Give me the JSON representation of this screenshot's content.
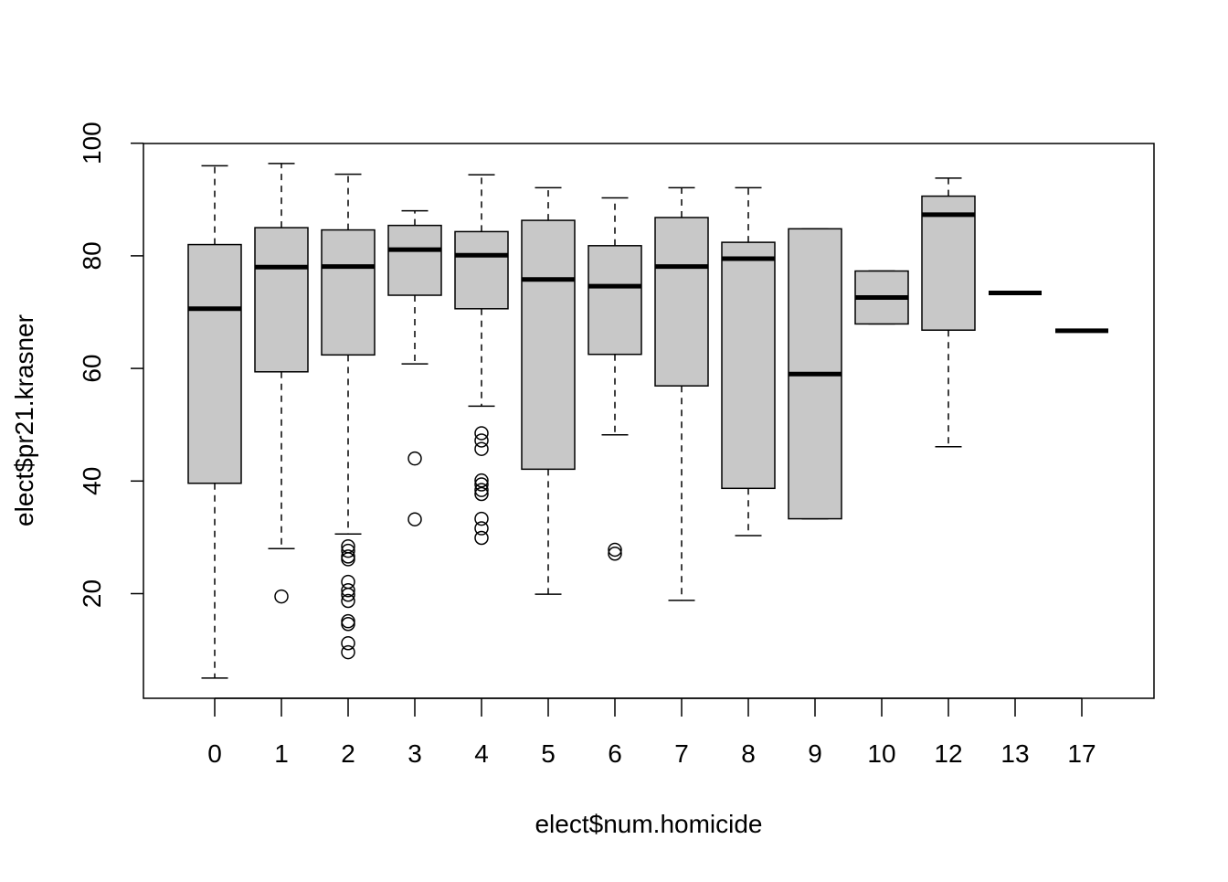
{
  "chart_data": {
    "type": "boxplot",
    "xlabel": "elect$num.homicide",
    "ylabel": "elect$pr21.krasner",
    "ylim": [
      0,
      100
    ],
    "yticks": [
      20,
      40,
      60,
      80,
      100
    ],
    "grid": false,
    "legend": "none",
    "box_fill": "#c8c8c8",
    "categories": [
      "0",
      "1",
      "2",
      "3",
      "4",
      "5",
      "6",
      "7",
      "8",
      "9",
      "10",
      "12",
      "13",
      "17"
    ],
    "boxes": [
      {
        "category": "0",
        "whisker_low": 5.0,
        "q1": 39.6,
        "median": 70.6,
        "q3": 82.0,
        "whisker_high": 96.0,
        "outliers": []
      },
      {
        "category": "1",
        "whisker_low": 28.0,
        "q1": 59.4,
        "median": 78.0,
        "q3": 85.0,
        "whisker_high": 96.4,
        "outliers": [
          19.5
        ]
      },
      {
        "category": "2",
        "whisker_low": 30.6,
        "q1": 62.4,
        "median": 78.1,
        "q3": 84.6,
        "whisker_high": 94.5,
        "outliers": [
          28.4,
          27.6,
          26.6,
          26.1,
          22.1,
          20.6,
          19.8,
          18.7,
          15.1,
          14.6,
          11.2,
          9.6
        ]
      },
      {
        "category": "3",
        "whisker_low": 60.8,
        "q1": 73.0,
        "median": 81.1,
        "q3": 85.4,
        "whisker_high": 88.0,
        "outliers": [
          44.0,
          33.2
        ]
      },
      {
        "category": "4",
        "whisker_low": 53.3,
        "q1": 70.6,
        "median": 80.1,
        "q3": 84.3,
        "whisker_high": 94.4,
        "outliers": [
          48.5,
          47.2,
          45.7,
          40.1,
          39.4,
          38.4,
          37.7,
          33.3,
          31.6,
          29.9
        ]
      },
      {
        "category": "5",
        "whisker_low": 19.9,
        "q1": 42.1,
        "median": 75.8,
        "q3": 86.3,
        "whisker_high": 92.1,
        "outliers": []
      },
      {
        "category": "6",
        "whisker_low": 48.2,
        "q1": 62.5,
        "median": 74.6,
        "q3": 81.8,
        "whisker_high": 90.3,
        "outliers": [
          27.8,
          27.1
        ]
      },
      {
        "category": "7",
        "whisker_low": 18.8,
        "q1": 56.9,
        "median": 78.1,
        "q3": 86.8,
        "whisker_high": 92.1,
        "outliers": []
      },
      {
        "category": "8",
        "whisker_low": 30.3,
        "q1": 38.7,
        "median": 79.5,
        "q3": 82.4,
        "whisker_high": 92.1,
        "outliers": []
      },
      {
        "category": "9",
        "whisker_low": 33.3,
        "q1": 33.3,
        "median": 59.0,
        "q3": 84.8,
        "whisker_high": 84.8,
        "outliers": []
      },
      {
        "category": "10",
        "whisker_low": 67.9,
        "q1": 67.9,
        "median": 72.6,
        "q3": 77.3,
        "whisker_high": 77.3,
        "outliers": []
      },
      {
        "category": "12",
        "whisker_low": 46.1,
        "q1": 66.8,
        "median": 87.3,
        "q3": 90.6,
        "whisker_high": 93.8,
        "outliers": []
      },
      {
        "category": "13",
        "whisker_low": 73.4,
        "q1": 73.4,
        "median": 73.4,
        "q3": 73.4,
        "whisker_high": 73.4,
        "outliers": []
      },
      {
        "category": "17",
        "whisker_low": 66.7,
        "q1": 66.7,
        "median": 66.7,
        "q3": 66.7,
        "whisker_high": 66.7,
        "outliers": []
      }
    ]
  }
}
